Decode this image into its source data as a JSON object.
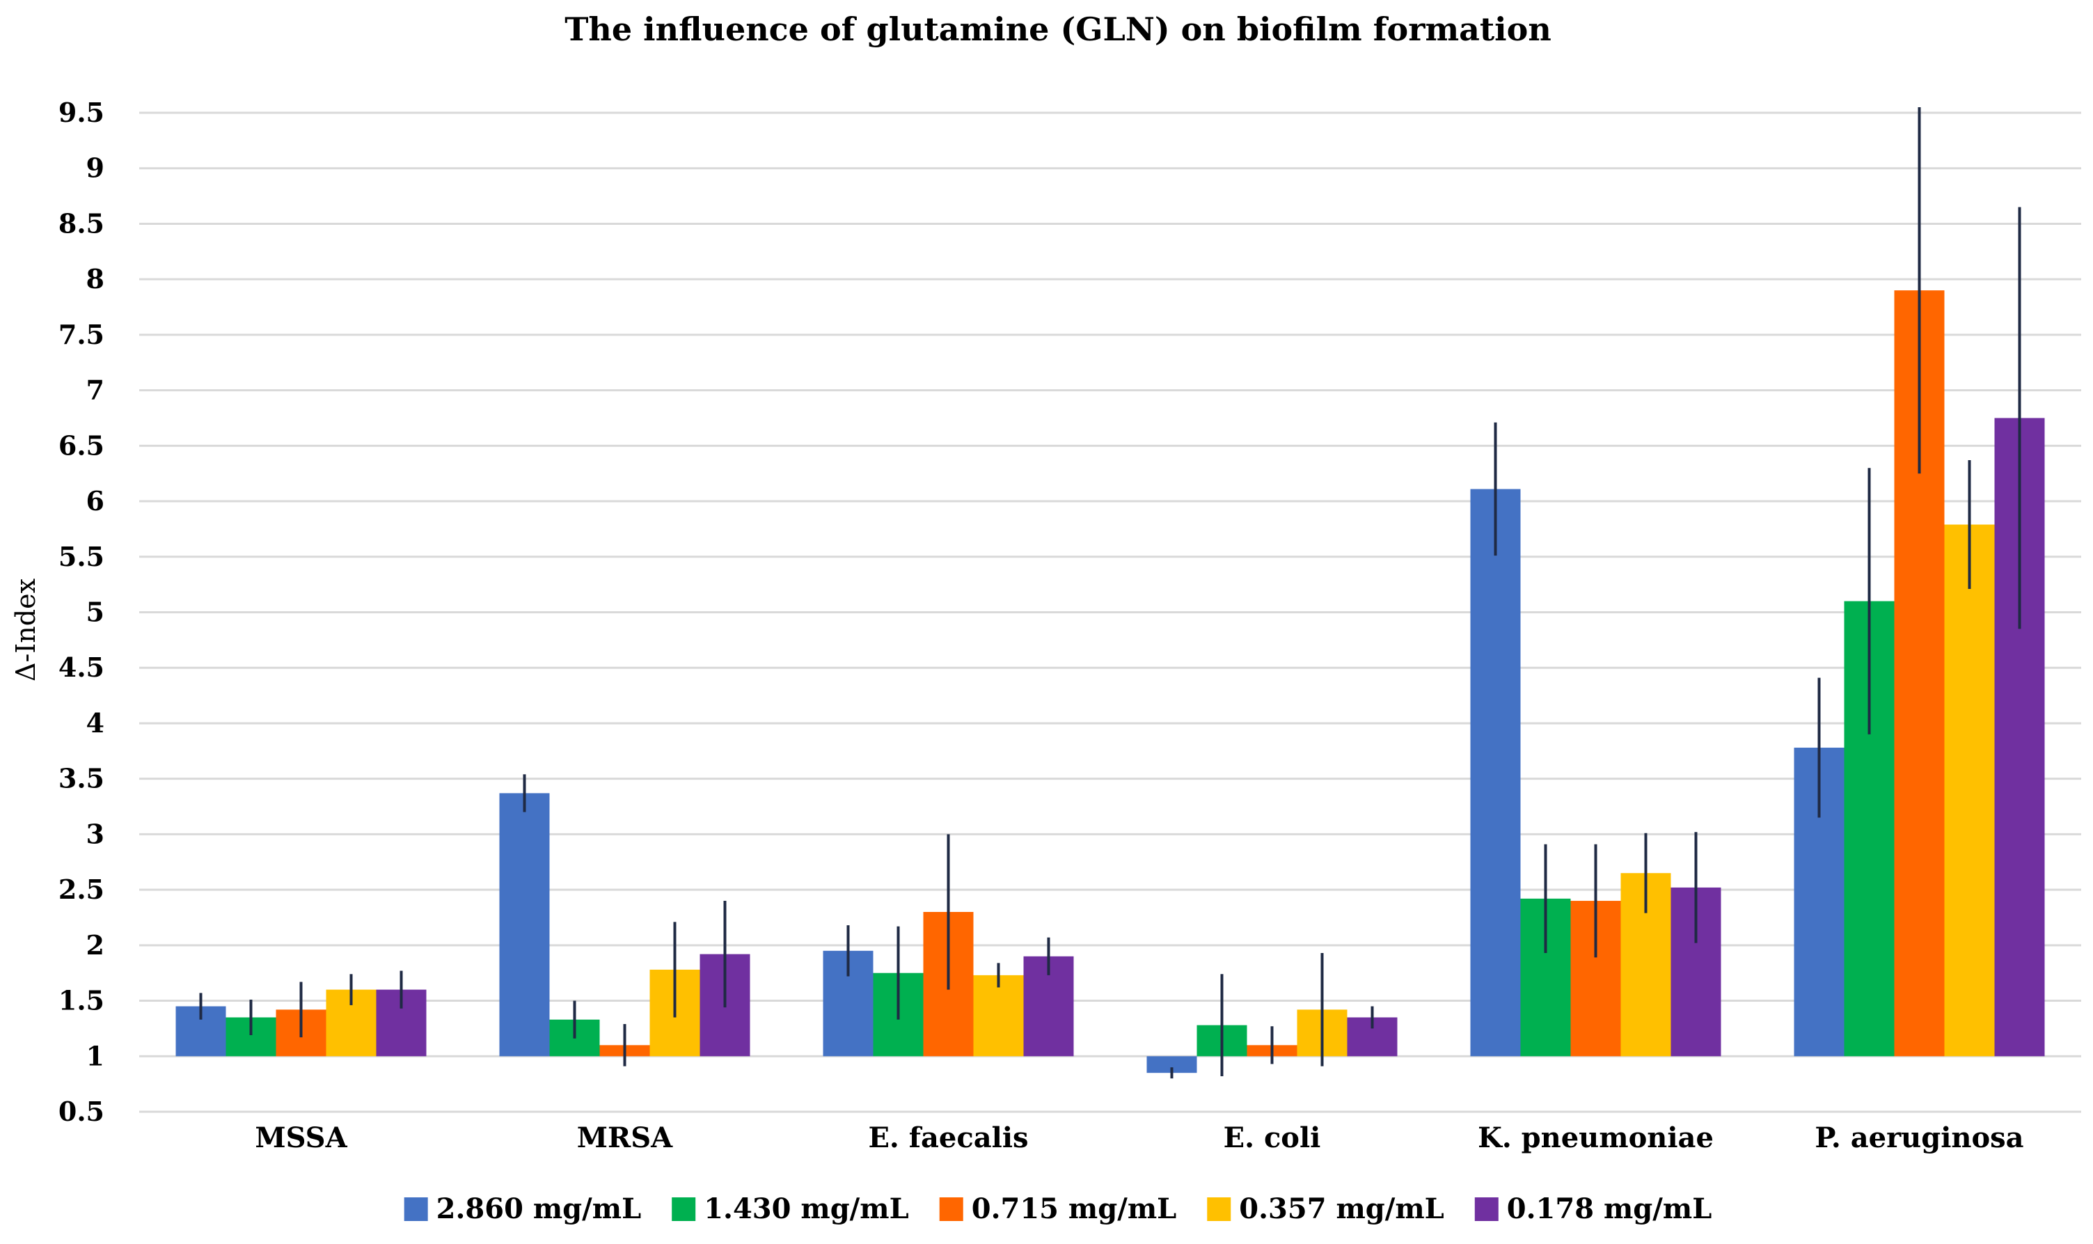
{
  "chart_data": {
    "type": "bar",
    "title": "The influence of glutamine (GLN) on biofilm formation",
    "xlabel": "",
    "ylabel": "Δ-Index",
    "ylim": [
      0.5,
      9.5
    ],
    "baseline": 1,
    "yticks": [
      "0.5",
      "1",
      "1.5",
      "2",
      "2.5",
      "3",
      "3.5",
      "4",
      "4.5",
      "5",
      "5.5",
      "6",
      "6.5",
      "7",
      "7.5",
      "8",
      "8.5",
      "9",
      "9.5"
    ],
    "ytick_values": [
      0.5,
      1,
      1.5,
      2,
      2.5,
      3,
      3.5,
      4,
      4.5,
      5,
      5.5,
      6,
      6.5,
      7,
      7.5,
      8,
      8.5,
      9,
      9.5
    ],
    "grid": true,
    "legend_position": "bottom",
    "categories": [
      "MSSA",
      "MRSA",
      "E. faecalis",
      "E. coli",
      "K. pneumoniae",
      "P. aeruginosa"
    ],
    "series": [
      {
        "name": "2.860 mg/mL",
        "color": "#4472C4",
        "values": [
          1.45,
          3.37,
          1.95,
          0.85,
          6.11,
          3.78
        ],
        "errors": [
          0.12,
          0.17,
          0.23,
          0.05,
          0.6,
          0.63
        ]
      },
      {
        "name": "1.430 mg/mL",
        "color": "#00B050",
        "values": [
          1.35,
          1.33,
          1.75,
          1.28,
          2.42,
          5.1
        ],
        "errors": [
          0.16,
          0.17,
          0.42,
          0.46,
          0.49,
          1.2
        ]
      },
      {
        "name": "0.715 mg/mL",
        "color": "#FF6600",
        "values": [
          1.42,
          1.1,
          2.3,
          1.1,
          2.4,
          7.9
        ],
        "errors": [
          0.25,
          0.19,
          0.7,
          0.17,
          0.51,
          1.65
        ]
      },
      {
        "name": "0.357 mg/mL",
        "color": "#FFC000",
        "values": [
          1.6,
          1.78,
          1.73,
          1.42,
          2.65,
          5.79
        ],
        "errors": [
          0.14,
          0.43,
          0.11,
          0.51,
          0.36,
          0.58
        ]
      },
      {
        "name": "0.178 mg/mL",
        "color": "#7030A0",
        "values": [
          1.6,
          1.92,
          1.9,
          1.35,
          2.52,
          6.75
        ],
        "errors": [
          0.17,
          0.48,
          0.17,
          0.1,
          0.5,
          1.9
        ]
      }
    ],
    "colors": {
      "grid": "#D9D9D9",
      "error_bar": "#1F2A44",
      "text": "#000000"
    }
  }
}
